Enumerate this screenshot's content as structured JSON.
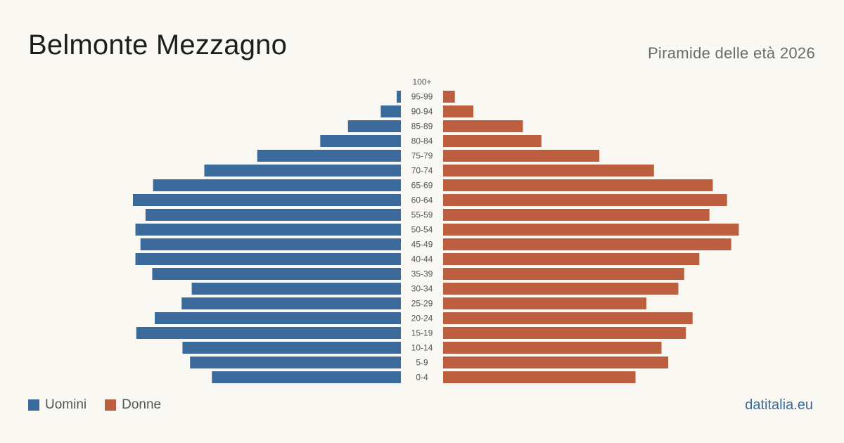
{
  "header": {
    "title": "Belmonte Mezzagno",
    "subtitle": "Piramide delle età 2026"
  },
  "legend": {
    "men_label": "Uomini",
    "women_label": "Donne"
  },
  "footer": {
    "brand": "datitalia.eu"
  },
  "colors": {
    "men": "#3b6a9c",
    "women": "#bb5f3e",
    "label": "#555555"
  },
  "chart_data": {
    "type": "bar",
    "orientation": "horizontal-pyramid",
    "title": "Belmonte Mezzagno",
    "subtitle": "Piramide delle età 2026",
    "categories": [
      "100+",
      "95-99",
      "90-94",
      "85-89",
      "80-84",
      "75-79",
      "70-74",
      "65-69",
      "60-64",
      "55-59",
      "50-54",
      "45-49",
      "40-44",
      "35-39",
      "30-34",
      "25-29",
      "20-24",
      "15-19",
      "10-14",
      "5-9",
      "0-4"
    ],
    "series": [
      {
        "name": "Uomini",
        "values": [
          0,
          5,
          24,
          63,
          96,
          171,
          234,
          295,
          319,
          304,
          316,
          310,
          316,
          296,
          249,
          261,
          293,
          315,
          260,
          251,
          225
        ]
      },
      {
        "name": "Donne",
        "values": [
          0,
          14,
          36,
          95,
          117,
          186,
          251,
          321,
          338,
          317,
          352,
          343,
          305,
          287,
          280,
          242,
          297,
          289,
          260,
          268,
          229
        ]
      }
    ],
    "xlim": [
      0,
      360
    ],
    "grid": false,
    "legend_position": "bottom-left"
  }
}
